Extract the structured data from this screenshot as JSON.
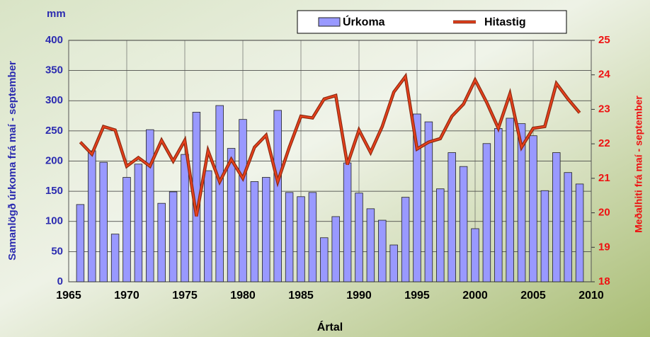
{
  "chart_data": {
    "type": "bar_line",
    "x_label": "Ártal",
    "y_label": "Samanlögð úrkoma frá maí - september",
    "y_unit": "mm",
    "y2_label": "Meðalhiti frá maí - september",
    "x": [
      1966,
      1967,
      1968,
      1969,
      1970,
      1971,
      1972,
      1973,
      1974,
      1975,
      1976,
      1977,
      1978,
      1979,
      1980,
      1981,
      1982,
      1983,
      1984,
      1985,
      1986,
      1987,
      1988,
      1989,
      1990,
      1991,
      1992,
      1993,
      1994,
      1995,
      1996,
      1997,
      1998,
      1999,
      2000,
      2001,
      2002,
      2003,
      2004,
      2005,
      2006,
      2007,
      2008,
      2009
    ],
    "series": [
      {
        "name": "Úrkoma",
        "type": "bar",
        "color": "#9999ff",
        "axis": "y",
        "values": [
          128,
          217,
          198,
          79,
          173,
          195,
          252,
          130,
          149,
          211,
          281,
          184,
          292,
          221,
          269,
          166,
          173,
          284,
          148,
          141,
          148,
          73,
          108,
          197,
          147,
          121,
          102,
          61,
          140,
          278,
          265,
          154,
          214,
          191,
          88,
          229,
          254,
          271,
          262,
          242,
          151,
          214,
          181,
          162
        ]
      },
      {
        "name": "Hitastig",
        "type": "line",
        "color": "#e8401c",
        "axis": "y2",
        "values": [
          22.05,
          21.7,
          22.5,
          22.4,
          21.35,
          21.6,
          21.35,
          22.1,
          21.5,
          22.1,
          19.9,
          21.8,
          20.9,
          21.55,
          21.0,
          21.9,
          22.25,
          20.9,
          21.9,
          22.8,
          22.75,
          23.3,
          23.4,
          21.4,
          22.4,
          21.75,
          22.5,
          23.5,
          23.95,
          21.85,
          22.05,
          22.15,
          22.8,
          23.15,
          23.85,
          23.2,
          22.45,
          23.45,
          21.9,
          22.45,
          22.5,
          23.75,
          23.3,
          22.9
        ]
      }
    ],
    "xlim": [
      1965,
      2010
    ],
    "xticks": [
      1965,
      1970,
      1975,
      1980,
      1985,
      1990,
      1995,
      2000,
      2005,
      2010
    ],
    "ylim": [
      0,
      400
    ],
    "yticks": [
      0,
      50,
      100,
      150,
      200,
      250,
      300,
      350,
      400
    ],
    "y2lim": [
      18,
      25
    ],
    "y2ticks": [
      18,
      19,
      20,
      21,
      22,
      23,
      24,
      25
    ],
    "grid": true,
    "legend": "top"
  }
}
